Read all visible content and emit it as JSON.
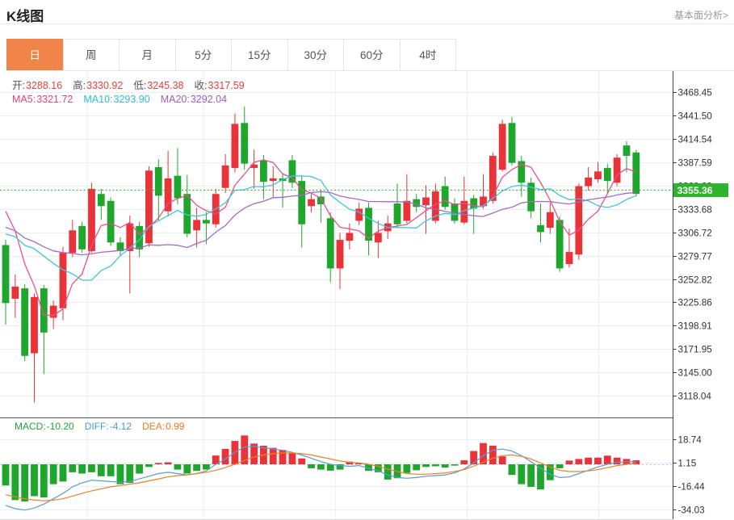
{
  "header": {
    "title": "K线图",
    "link": "基本面分析>"
  },
  "tabs": {
    "items": [
      "日",
      "周",
      "月",
      "5分",
      "15分",
      "30分",
      "60分",
      "4时"
    ],
    "active_index": 0
  },
  "legend": {
    "ohlc": [
      {
        "label": "开:",
        "value": "3288.16"
      },
      {
        "label": "高:",
        "value": "3330.92"
      },
      {
        "label": "低:",
        "value": "3245.38"
      },
      {
        "label": "收:",
        "value": "3317.59"
      }
    ],
    "ma": [
      {
        "label": "MA5:",
        "value": "3321.72",
        "color": "#e0457e"
      },
      {
        "label": "MA10:",
        "value": "3293.90",
        "color": "#2cc0d4"
      },
      {
        "label": "MA20:",
        "value": "3292.04",
        "color": "#a05ac8"
      }
    ]
  },
  "macd_legend": [
    {
      "label": "MACD:",
      "value": "-10.20",
      "color": "#1ea33c"
    },
    {
      "label": "DIFF:",
      "value": "-4.12",
      "color": "#4f99d4"
    },
    {
      "label": "DEA:",
      "value": "0.99",
      "color": "#f07818"
    }
  ],
  "price_tag": {
    "value": "3355.36",
    "color": "#2cb42c"
  },
  "chart_data": [
    {
      "type": "candlestick",
      "title": "K线图 日K",
      "y_axis_labels": [
        3468.45,
        3441.5,
        3414.54,
        3387.59,
        3360.63,
        3333.68,
        3306.72,
        3279.77,
        3252.82,
        3225.86,
        3198.91,
        3171.95,
        3145.0,
        3118.04
      ],
      "ylim": [
        3092,
        3493
      ],
      "current_price": 3355.36,
      "grid": true,
      "colors": {
        "up": "#e93339",
        "down": "#1fa62c",
        "ma5": "#ec4f87",
        "ma10": "#3ec6dc",
        "ma20": "#a669c8"
      },
      "series_note": "candles are [open, high, low, close]; MA5/MA10/MA20 lines computed from closes",
      "candles": [
        [
          3292,
          3298,
          3200,
          3225
        ],
        [
          3230,
          3258,
          3208,
          3244
        ],
        [
          3242,
          3247,
          3158,
          3164
        ],
        [
          3167,
          3236,
          3110,
          3232
        ],
        [
          3242,
          3246,
          3143,
          3191
        ],
        [
          3208,
          3228,
          3195,
          3222
        ],
        [
          3219,
          3290,
          3205,
          3283
        ],
        [
          3283,
          3321,
          3278,
          3309
        ],
        [
          3314,
          3319,
          3283,
          3287
        ],
        [
          3285,
          3364,
          3283,
          3357
        ],
        [
          3351,
          3357,
          3321,
          3337
        ],
        [
          3343,
          3347,
          3291,
          3295
        ],
        [
          3295,
          3301,
          3280,
          3285
        ],
        [
          3285,
          3326,
          3236,
          3317
        ],
        [
          3314,
          3319,
          3278,
          3287
        ],
        [
          3294,
          3383,
          3290,
          3378
        ],
        [
          3382,
          3391,
          3320,
          3349
        ],
        [
          3331,
          3401,
          3325,
          3369
        ],
        [
          3372,
          3404,
          3339,
          3346
        ],
        [
          3351,
          3373,
          3301,
          3305
        ],
        [
          3309,
          3335,
          3289,
          3321
        ],
        [
          3321,
          3330,
          3293,
          3317
        ],
        [
          3316,
          3357,
          3312,
          3351
        ],
        [
          3358,
          3397,
          3352,
          3384
        ],
        [
          3381,
          3444,
          3376,
          3432
        ],
        [
          3433,
          3452,
          3379,
          3386
        ],
        [
          3381,
          3402,
          3357,
          3385
        ],
        [
          3390,
          3396,
          3345,
          3365
        ],
        [
          3366,
          3383,
          3347,
          3369
        ],
        [
          3369,
          3375,
          3335,
          3366
        ],
        [
          3390,
          3396,
          3358,
          3364
        ],
        [
          3366,
          3372,
          3289,
          3316
        ],
        [
          3337,
          3351,
          3330,
          3345
        ],
        [
          3348,
          3356,
          3318,
          3339
        ],
        [
          3323,
          3330,
          3249,
          3265
        ],
        [
          3265,
          3306,
          3241,
          3298
        ],
        [
          3297,
          3317,
          3287,
          3306
        ],
        [
          3320,
          3341,
          3315,
          3334
        ],
        [
          3335,
          3341,
          3280,
          3297
        ],
        [
          3295,
          3320,
          3277,
          3306
        ],
        [
          3308,
          3326,
          3299,
          3317
        ],
        [
          3340,
          3363,
          3312,
          3316
        ],
        [
          3320,
          3374,
          3317,
          3343
        ],
        [
          3345,
          3351,
          3330,
          3336
        ],
        [
          3338,
          3361,
          3305,
          3347
        ],
        [
          3320,
          3363,
          3317,
          3354
        ],
        [
          3360,
          3371,
          3333,
          3336
        ],
        [
          3340,
          3346,
          3317,
          3320
        ],
        [
          3318,
          3371,
          3316,
          3343
        ],
        [
          3346,
          3350,
          3305,
          3334
        ],
        [
          3337,
          3374,
          3334,
          3348
        ],
        [
          3343,
          3399,
          3340,
          3395
        ],
        [
          3379,
          3437,
          3377,
          3432
        ],
        [
          3433,
          3440,
          3384,
          3387
        ],
        [
          3389,
          3395,
          3348,
          3364
        ],
        [
          3364,
          3370,
          3323,
          3331
        ],
        [
          3315,
          3340,
          3295,
          3307
        ],
        [
          3312,
          3341,
          3305,
          3330
        ],
        [
          3321,
          3325,
          3261,
          3265
        ],
        [
          3270,
          3311,
          3266,
          3284
        ],
        [
          3281,
          3363,
          3275,
          3360
        ],
        [
          3360,
          3382,
          3355,
          3370
        ],
        [
          3368,
          3388,
          3364,
          3377
        ],
        [
          3381,
          3386,
          3351,
          3366
        ],
        [
          3364,
          3397,
          3360,
          3393
        ],
        [
          3407,
          3412,
          3376,
          3395
        ],
        [
          3399,
          3402,
          3348,
          3351
        ]
      ]
    },
    {
      "type": "bar",
      "title": "MACD",
      "y_axis_labels": [
        18.74,
        1.15,
        -16.44,
        -34.03
      ],
      "legend_values": {
        "MACD": -10.2,
        "DIFF": -4.12,
        "DEA": 0.99
      },
      "histogram": [
        -16,
        -27,
        -28,
        -24,
        -25,
        -15,
        -13,
        -6,
        -7,
        -6,
        -9,
        -9,
        -15,
        -14,
        -7,
        -2,
        1,
        1.5,
        -4,
        -7,
        -5,
        -4,
        6.6,
        11.6,
        17.6,
        21.7,
        15.6,
        14,
        12.4,
        10.8,
        8.8,
        4.4,
        -3,
        -4,
        -4.8,
        -4,
        2,
        1,
        -5,
        -6,
        -11.5,
        -10.5,
        -6.5,
        -4.5,
        -2,
        -1.5,
        -2.5,
        -1,
        3,
        10,
        16,
        14,
        6,
        -8,
        -15,
        -17,
        -19,
        -12,
        -3,
        2.8,
        4,
        5,
        5,
        6.5,
        5,
        4,
        3
      ],
      "diff": [
        -31,
        -33.5,
        -34.5,
        -33,
        -30,
        -26,
        -22,
        -17,
        -14,
        -12,
        -12.5,
        -13,
        -13.5,
        -13,
        -11,
        -9,
        -7,
        -6,
        -7,
        -8,
        -7,
        -5,
        0,
        4,
        9,
        13,
        13.5,
        12.5,
        11.5,
        10.5,
        9,
        7,
        4.5,
        2,
        0,
        -1,
        -1.5,
        -1,
        -3,
        -5,
        -8,
        -10,
        -10.5,
        -10,
        -9,
        -8.5,
        -8,
        -6.5,
        -3.5,
        1,
        6.5,
        10.5,
        11.5,
        10,
        6.5,
        2,
        -3,
        -7.5,
        -10,
        -9.5,
        -7,
        -4.5,
        -2,
        0,
        1.5,
        2,
        2
      ],
      "dea": [
        -23,
        -24.5,
        -26,
        -27,
        -27.5,
        -27,
        -26,
        -24,
        -22,
        -20,
        -18.5,
        -17,
        -16,
        -15,
        -14,
        -12.5,
        -11,
        -9.5,
        -8.5,
        -8,
        -7,
        -6,
        -4.5,
        -2.5,
        0,
        3,
        5.5,
        7,
        8,
        8.5,
        8.5,
        8,
        7,
        5.5,
        4,
        2.5,
        1.5,
        1,
        0,
        -1.5,
        -3.5,
        -5.5,
        -7,
        -7.5,
        -7.5,
        -7,
        -6.5,
        -5.5,
        -4,
        -1.5,
        1.5,
        4.5,
        6.5,
        7,
        6,
        4,
        1,
        -2,
        -4.5,
        -5.5,
        -5.5,
        -5,
        -4,
        -2.5,
        -1,
        0,
        1
      ],
      "colors": {
        "up": "#e93339",
        "down": "#1fa62c",
        "diff": "#5b9bd5",
        "dea": "#f08122"
      }
    }
  ]
}
